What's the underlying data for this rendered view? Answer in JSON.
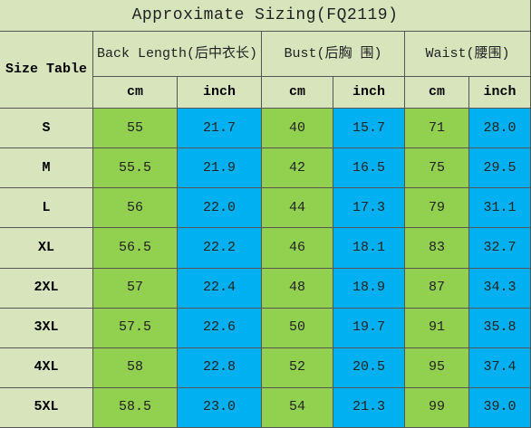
{
  "title": "Approximate Sizing(FQ2119)",
  "header": {
    "size_table": "Size Table",
    "groups": [
      {
        "label": "Back Length(后中衣长)",
        "units": [
          "cm",
          "inch"
        ]
      },
      {
        "label": "Bust(后胸 围)",
        "units": [
          "cm",
          "inch"
        ]
      },
      {
        "label": "Waist(腰围)",
        "units": [
          "cm",
          "inch"
        ]
      }
    ]
  },
  "rows": [
    [
      "S",
      "55",
      "21.7",
      "40",
      "15.7",
      "71",
      "28.0"
    ],
    [
      "M",
      "55.5",
      "21.9",
      "42",
      "16.5",
      "75",
      "29.5"
    ],
    [
      "L",
      "56",
      "22.0",
      "44",
      "17.3",
      "79",
      "31.1"
    ],
    [
      "XL",
      "56.5",
      "22.2",
      "46",
      "18.1",
      "83",
      "32.7"
    ],
    [
      "2XL",
      "57",
      "22.4",
      "48",
      "18.9",
      "87",
      "34.3"
    ],
    [
      "3XL",
      "57.5",
      "22.6",
      "50",
      "19.7",
      "91",
      "35.8"
    ],
    [
      "4XL",
      "58",
      "22.8",
      "52",
      "20.5",
      "95",
      "37.4"
    ],
    [
      "5XL",
      "58.5",
      "23.0",
      "54",
      "21.3",
      "99",
      "39.0"
    ]
  ]
}
